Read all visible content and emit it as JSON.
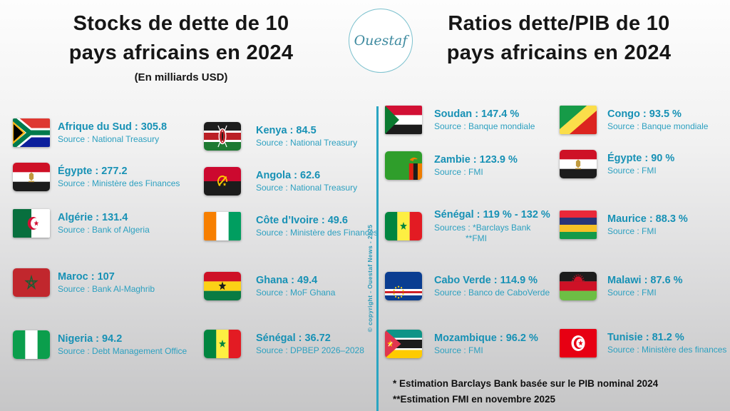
{
  "colors": {
    "accent": "#1791b5",
    "source_text": "#2ca0c0",
    "divider": "#2aa5c2",
    "title": "#161616"
  },
  "logo": {
    "text": "Ouestaf"
  },
  "watermark": {
    "text": "© copyright - Ouestaf News - 2025"
  },
  "left_panel": {
    "title_line1": "Stocks de dette de 10",
    "title_line2": "pays africains en 2024",
    "subtitle": "(En milliards USD)",
    "columns": [
      {
        "items": [
          {
            "label": "Afrique du Sud : 305.8",
            "source": "Source : National Treasury",
            "flag": "flag-south-africa"
          },
          {
            "label": "Égypte : 277.2",
            "source": "Source : Ministère des Finances",
            "flag": "flag-egypt"
          },
          {
            "label": "Algérie : 131.4",
            "source": "Source : Bank of Algeria",
            "flag": "flag-algeria"
          },
          {
            "label": "Maroc : 107",
            "source": "Source : Bank Al-Maghrib",
            "flag": "flag-morocco"
          },
          {
            "label": "Nigeria : 94.2",
            "source": "Source : Debt Management Office",
            "flag": "flag-nigeria"
          }
        ]
      },
      {
        "items": [
          {
            "label": "Kenya : 84.5",
            "source": "Source : National Treasury",
            "flag": "flag-kenya"
          },
          {
            "label": "Angola : 62.6",
            "source": "Source : National Treasury",
            "flag": "flag-angola"
          },
          {
            "label": "Côte d’Ivoire : 49.6",
            "source": "Source : Ministère des Finances",
            "flag": "flag-cote-divoire"
          },
          {
            "label": "Ghana : 49.4",
            "source": "Source : MoF Ghana",
            "flag": "flag-ghana"
          },
          {
            "label": "Sénégal : 36.72",
            "source": "Source : DPBEP 2026–2028",
            "flag": "flag-senegal"
          }
        ]
      }
    ]
  },
  "right_panel": {
    "title_line1": "Ratios dette/PIB de 10",
    "title_line2": "pays africains en 2024",
    "columns": [
      {
        "items": [
          {
            "label": "Soudan : 147.4 %",
            "source": "Source : Banque mondiale",
            "flag": "flag-sudan"
          },
          {
            "label": "Zambie : 123.9 %",
            "source": "Source : FMI",
            "flag": "flag-zambia"
          },
          {
            "label": "Sénégal : 119 % - 132 %",
            "source": "Sources : *Barclays Bank",
            "source2": "**FMI",
            "flag": "flag-senegal"
          },
          {
            "label": "Cabo Verde : 114.9 %",
            "source": "Source : Banco de CaboVerde",
            "flag": "flag-cape-verde"
          },
          {
            "label": "Mozambique : 96.2 %",
            "source": "Source : FMI",
            "flag": "flag-mozambique"
          }
        ]
      },
      {
        "items": [
          {
            "label": "Congo : 93.5 %",
            "source": "Source : Banque mondiale",
            "flag": "flag-congo"
          },
          {
            "label": "Égypte : 90 %",
            "source": "Source : FMI",
            "flag": "flag-egypt"
          },
          {
            "label": "Maurice : 88.3 %",
            "source": "Source : FMI",
            "flag": "flag-mauritius"
          },
          {
            "label": "Malawi : 87.6 %",
            "source": "Source : FMI",
            "flag": "flag-malawi"
          },
          {
            "label": "Tunisie : 81.2 %",
            "source": "Source : Ministère des finances",
            "flag": "flag-tunisia"
          }
        ]
      }
    ],
    "footnote1": "*  Estimation Barclays Bank basée sur  le PIB nominal 2024",
    "footnote2": "**Estimation FMI en novembre 2025"
  },
  "chart_data": [
    {
      "type": "table",
      "title": "Stocks de dette de 10 pays africains en 2024",
      "unit": "milliards USD",
      "categories": [
        "Afrique du Sud",
        "Égypte",
        "Algérie",
        "Maroc",
        "Nigeria",
        "Kenya",
        "Angola",
        "Côte d’Ivoire",
        "Ghana",
        "Sénégal"
      ],
      "values": [
        305.8,
        277.2,
        131.4,
        107,
        94.2,
        84.5,
        62.6,
        49.6,
        49.4,
        36.72
      ],
      "sources": [
        "National Treasury",
        "Ministère des Finances",
        "Bank of Algeria",
        "Bank Al-Maghrib",
        "Debt Management Office",
        "National Treasury",
        "National Treasury",
        "Ministère des Finances",
        "MoF Ghana",
        "DPBEP 2026–2028"
      ]
    },
    {
      "type": "table",
      "title": "Ratios dette/PIB de 10 pays africains en 2024",
      "unit": "%",
      "categories": [
        "Soudan",
        "Zambie",
        "Sénégal",
        "Cabo Verde",
        "Mozambique",
        "Congo",
        "Égypte",
        "Maurice",
        "Malawi",
        "Tunisie"
      ],
      "values": [
        147.4,
        123.9,
        "119-132",
        114.9,
        96.2,
        93.5,
        90,
        88.3,
        87.6,
        81.2
      ],
      "sources": [
        "Banque mondiale",
        "FMI",
        "*Barclays Bank / **FMI",
        "Banco de CaboVerde",
        "FMI",
        "Banque mondiale",
        "FMI",
        "FMI",
        "FMI",
        "Ministère des finances"
      ]
    }
  ]
}
